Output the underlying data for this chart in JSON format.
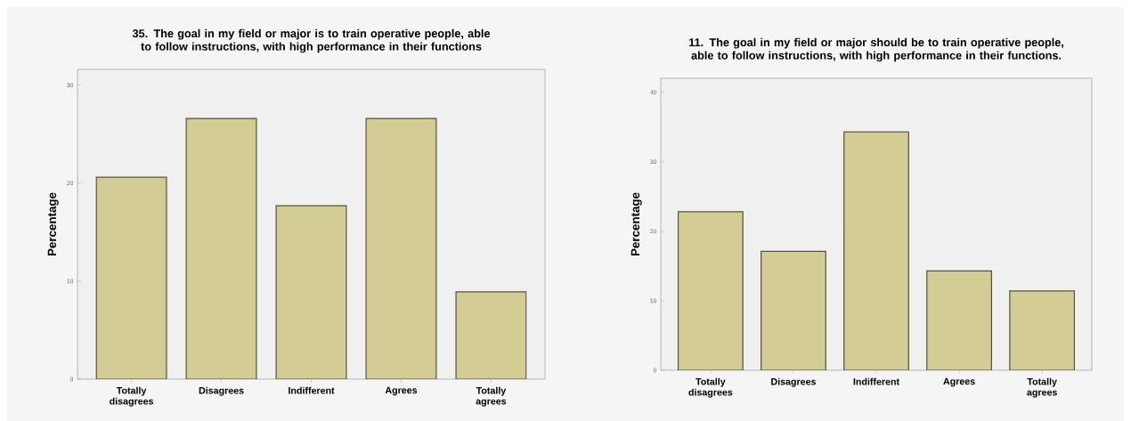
{
  "chart_data": [
    {
      "type": "bar",
      "title": "35. The goal in my field or major is to train operative people, able to follow instructions, with high performance in their functions",
      "ylabel": "Percentage",
      "categories": [
        "Totally disagrees",
        "Disagrees",
        "Indifferent",
        "Agrees",
        "Totally agrees"
      ],
      "values": [
        20.6,
        26.6,
        17.7,
        26.6,
        8.9
      ],
      "color": "#d3cc95",
      "ylim": [
        0,
        31.6
      ],
      "yticks": [
        0,
        10,
        20,
        30
      ]
    },
    {
      "type": "bar",
      "title": "11. The goal in my field or major should be to train operative people, able to follow instructions, with high performance in their functions.",
      "ylabel": "Percentage",
      "categories": [
        "Totally disagrees",
        "Disagrees",
        "Indifferent",
        "Agrees",
        "Totally agrees"
      ],
      "values": [
        22.8,
        17.1,
        34.3,
        14.3,
        11.4
      ],
      "color": "#d3cc95",
      "ylim": [
        0,
        42
      ],
      "yticks": [
        0,
        10,
        20,
        30,
        40
      ]
    }
  ]
}
